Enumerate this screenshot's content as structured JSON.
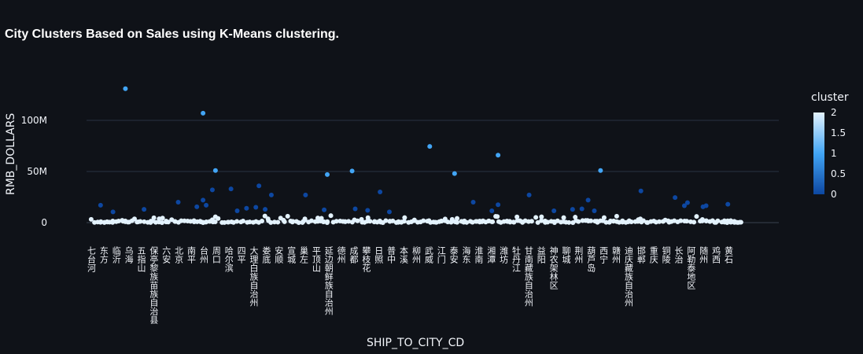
{
  "chart_data": {
    "type": "scatter",
    "title": "City Clusters Based on Sales using K-Means clustering.",
    "xlabel": "SHIP_TO_CITY_CD",
    "ylabel": "RMB_DOLLARS",
    "y_ticks": [
      "0",
      "50M",
      "100M"
    ],
    "y_tick_values": [
      0,
      50000000,
      100000000
    ],
    "ylim": [
      -5000000,
      140000000
    ],
    "grid": true,
    "x_tick_labels": [
      "七台河",
      "东方",
      "临沂",
      "乌海",
      "五指山",
      "保亭黎族苗族自治县",
      "六安",
      "北京",
      "南平",
      "台州",
      "周口",
      "哈尔滨",
      "四平",
      "大理白族自治州",
      "娄底",
      "安顺",
      "宣城",
      "巢左",
      "平顶山",
      "延边朝鲜族自治州",
      "德州",
      "成都",
      "攀枝花",
      "日照",
      "普中",
      "本溪",
      "柳州",
      "武威",
      "江门",
      "泰安",
      "海东",
      "淮南",
      "湘潭",
      "潍坊",
      "牡丹江",
      "甘南藏族自治州",
      "益阳",
      "神农架林区",
      "聊城",
      "荆州",
      "葫芦岛",
      "西宁",
      "赣州",
      "迪庆藏族自治州",
      "邯郸",
      "重庆",
      "铜陵",
      "长治",
      "阿勒泰地区",
      "随州",
      "鸡西",
      "黄石"
    ],
    "colorbar": {
      "title": "cluster",
      "ticks": [
        "2",
        "1.5",
        "1",
        "0.5",
        "0"
      ],
      "min": 0,
      "max": 2
    },
    "series": [
      {
        "cluster": 0,
        "color": "#0d47a1",
        "points": [
          [
            3,
            17000000
          ],
          [
            7,
            10500000
          ],
          [
            17,
            13000000
          ],
          [
            28,
            20000000
          ],
          [
            34,
            15500000
          ],
          [
            36,
            22000000
          ],
          [
            37,
            17000000
          ],
          [
            39,
            32000000
          ],
          [
            45,
            33000000
          ],
          [
            47,
            11500000
          ],
          [
            50,
            14000000
          ],
          [
            54,
            36000000
          ],
          [
            53,
            15000000
          ],
          [
            56,
            13000000
          ],
          [
            58,
            27000000
          ],
          [
            69,
            27000000
          ],
          [
            75,
            12500000
          ],
          [
            85,
            13500000
          ],
          [
            89,
            12000000
          ],
          [
            93,
            30000000
          ],
          [
            96,
            10500000
          ],
          [
            123,
            20000000
          ],
          [
            129,
            11500000
          ],
          [
            131,
            17500000
          ],
          [
            141,
            27000000
          ],
          [
            149,
            11500000
          ],
          [
            155,
            13000000
          ],
          [
            158,
            13500000
          ],
          [
            160,
            22000000
          ],
          [
            162,
            11500000
          ],
          [
            177,
            31000000
          ],
          [
            188,
            24500000
          ],
          [
            191,
            16500000
          ],
          [
            192,
            19500000
          ],
          [
            197,
            15500000
          ],
          [
            198,
            16500000
          ],
          [
            205,
            18000000
          ]
        ]
      },
      {
        "cluster": 1,
        "color": "#42a5f5",
        "points": [
          [
            11,
            131000000
          ],
          [
            36,
            107000000
          ],
          [
            40,
            51000000
          ],
          [
            76,
            47000000
          ],
          [
            84,
            50500000
          ],
          [
            109,
            74500000
          ],
          [
            117,
            48000000
          ],
          [
            131,
            66000000
          ],
          [
            164,
            51000000
          ]
        ]
      },
      {
        "cluster": 2,
        "color": "#e3f2fd",
        "points": "dense band near 0 across all cities"
      }
    ]
  }
}
